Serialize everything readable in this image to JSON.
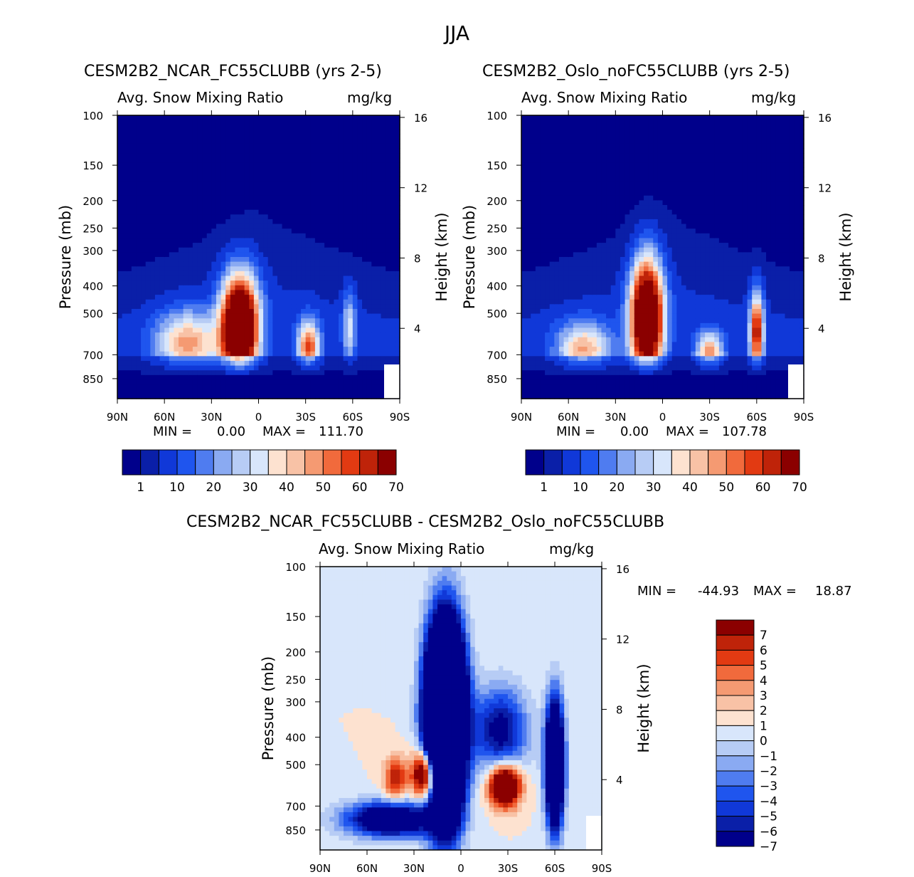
{
  "title": "JJA",
  "colors": {
    "nonneg": [
      "#00008b",
      "#0a1fa8",
      "#1038d8",
      "#1f55ee",
      "#4f7cf0",
      "#8aaaf2",
      "#b7ccf5",
      "#d8e6fb",
      "#fde2d0",
      "#f8c2a6",
      "#f59a72",
      "#f16a3c",
      "#e23a12",
      "#bf2309",
      "#8b0000"
    ],
    "diff": [
      "#00008b",
      "#0a1fa8",
      "#1038d8",
      "#1f55ee",
      "#4f7cf0",
      "#8aaaf2",
      "#b7ccf5",
      "#d8e6fb",
      "#fde2d0",
      "#f8c2a6",
      "#f59a72",
      "#f16a3c",
      "#e23a12",
      "#bf2309",
      "#8b0000"
    ],
    "white": "#ffffff"
  },
  "chart_data": [
    {
      "type": "heatmap",
      "id": "ncar",
      "title": "CESM2B2_NCAR_FC55CLUBB (yrs 2-5)",
      "subtitle_left": "Avg. Snow Mixing Ratio",
      "subtitle_right": "mg/kg",
      "xlabel": "",
      "ylabel": "Pressure (mb)",
      "y2label": "Height (km)",
      "x_ticks": [
        "90N",
        "60N",
        "30N",
        "0",
        "30S",
        "60S",
        "90S"
      ],
      "x_range": [
        90,
        -90
      ],
      "y_ticks": [
        100,
        150,
        200,
        250,
        300,
        400,
        500,
        700,
        850
      ],
      "y_range": [
        100,
        1000
      ],
      "y2_ticks": [
        16,
        12,
        8,
        4
      ],
      "min_label": "MIN =",
      "min_value": "0.00",
      "max_label": "MAX =",
      "max_value": "111.70",
      "colorbar_labels": [
        "1",
        "10",
        "20",
        "30",
        "40",
        "50",
        "60",
        "70"
      ],
      "features": [
        {
          "lat": 12,
          "p": 560,
          "peak": 111.7,
          "wlat": 8,
          "wp": 0.28
        },
        {
          "lat": 45,
          "p": 640,
          "peak": 42,
          "wlat": 14,
          "wp": 0.18
        },
        {
          "lat": -32,
          "p": 660,
          "peak": 52,
          "wlat": 5,
          "wp": 0.15
        },
        {
          "lat": -58,
          "p": 560,
          "peak": 26,
          "wlat": 3,
          "wp": 0.2
        }
      ]
    },
    {
      "type": "heatmap",
      "id": "oslo",
      "title": "CESM2B2_Oslo_noFC55CLUBB (yrs 2-5)",
      "subtitle_left": "Avg. Snow Mixing Ratio",
      "subtitle_right": "mg/kg",
      "xlabel": "",
      "ylabel": "Pressure (mb)",
      "y2label": "Height (km)",
      "x_ticks": [
        "90N",
        "60N",
        "30N",
        "0",
        "30S",
        "60S",
        "90S"
      ],
      "x_range": [
        90,
        -90
      ],
      "y_ticks": [
        100,
        150,
        200,
        250,
        300,
        400,
        500,
        700,
        850
      ],
      "y_range": [
        100,
        1000
      ],
      "y2_ticks": [
        16,
        12,
        8,
        4
      ],
      "min_label": "MIN =",
      "min_value": "0.00",
      "max_label": "MAX =",
      "max_value": "107.78",
      "colorbar_labels": [
        "1",
        "10",
        "20",
        "30",
        "40",
        "50",
        "60",
        "70"
      ],
      "features": [
        {
          "lat": 10,
          "p": 520,
          "peak": 107.78,
          "wlat": 7,
          "wp": 0.32
        },
        {
          "lat": 50,
          "p": 670,
          "peak": 40,
          "wlat": 12,
          "wp": 0.15
        },
        {
          "lat": -30,
          "p": 690,
          "peak": 42,
          "wlat": 6,
          "wp": 0.12
        },
        {
          "lat": -60,
          "p": 580,
          "peak": 62,
          "wlat": 3,
          "wp": 0.22
        }
      ]
    },
    {
      "type": "heatmap",
      "id": "diff",
      "title": "CESM2B2_NCAR_FC55CLUBB - CESM2B2_Oslo_noFC55CLUBB",
      "subtitle_left": "Avg. Snow Mixing Ratio",
      "subtitle_right": "mg/kg",
      "xlabel": "",
      "ylabel": "Pressure (mb)",
      "y2label": "Height (km)",
      "x_ticks": [
        "90N",
        "60N",
        "30N",
        "0",
        "30S",
        "60S",
        "90S"
      ],
      "x_range": [
        90,
        -90
      ],
      "y_ticks": [
        100,
        150,
        200,
        250,
        300,
        400,
        500,
        700,
        850
      ],
      "y_range": [
        100,
        1000
      ],
      "y2_ticks": [
        16,
        12,
        8,
        4
      ],
      "min_label": "MIN =",
      "min_value": "-44.93",
      "max_label": "MAX =",
      "max_value": "18.87",
      "colorbar_labels": [
        "7",
        "6",
        "5",
        "4",
        "3",
        "2",
        "1",
        "0",
        "-1",
        "-2",
        "-3",
        "-4",
        "-5",
        "-6",
        "-7"
      ],
      "features": [
        {
          "lat": 22,
          "p": 540,
          "amp": 15,
          "wlat": 6,
          "wp": 0.14
        },
        {
          "lat": 2,
          "p": 470,
          "amp": 12,
          "wlat": 3,
          "wp": 0.08
        },
        {
          "lat": -28,
          "p": 590,
          "amp": 14,
          "wlat": 7,
          "wp": 0.12
        },
        {
          "lat": 42,
          "p": 560,
          "amp": 6,
          "wlat": 5,
          "wp": 0.12
        },
        {
          "lat": 10,
          "p": 350,
          "amp": -44.93,
          "wlat": 8,
          "wp": 0.5
        },
        {
          "lat": -60,
          "p": 500,
          "amp": -20,
          "wlat": 4,
          "wp": 0.35
        },
        {
          "lat": 45,
          "p": 780,
          "amp": -12,
          "wlat": 20,
          "wp": 0.1
        },
        {
          "lat": -25,
          "p": 380,
          "amp": -8,
          "wlat": 12,
          "wp": 0.25
        }
      ]
    }
  ]
}
